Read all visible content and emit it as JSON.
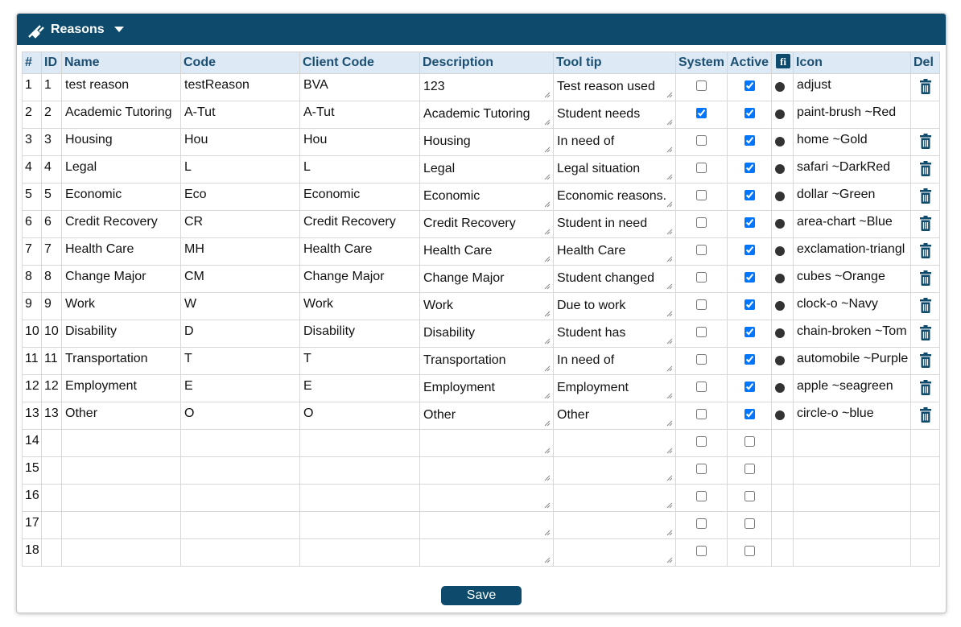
{
  "header": {
    "title": "Reasons"
  },
  "table": {
    "columns": [
      "#",
      "ID",
      "Name",
      "Code",
      "Client Code",
      "Description",
      "Tool tip",
      "System",
      "Active",
      "Icon",
      "Del"
    ],
    "rows": [
      {
        "num": 1,
        "id": 1,
        "name": "test reason",
        "code": "testReason",
        "client_code": "BVA",
        "description": "123",
        "tooltip": "Test reason used",
        "system": false,
        "active": true,
        "icon": "adjust"
      },
      {
        "num": 2,
        "id": 2,
        "name": "Academic Tutoring",
        "code": "A-Tut",
        "client_code": "A-Tut",
        "description": "Academic Tutoring",
        "tooltip": "Student needs",
        "system": true,
        "active": true,
        "icon": "paint-brush ~Red"
      },
      {
        "num": 3,
        "id": 3,
        "name": "Housing",
        "code": "Hou",
        "client_code": "Hou",
        "description": "Housing",
        "tooltip": "In need of",
        "system": false,
        "active": true,
        "icon": "home ~Gold"
      },
      {
        "num": 4,
        "id": 4,
        "name": "Legal",
        "code": "L",
        "client_code": "L",
        "description": "Legal",
        "tooltip": "Legal situation",
        "system": false,
        "active": true,
        "icon": "safari ~DarkRed"
      },
      {
        "num": 5,
        "id": 5,
        "name": "Economic",
        "code": "Eco",
        "client_code": "Economic",
        "description": "Economic",
        "tooltip": "Economic reasons.",
        "system": false,
        "active": true,
        "icon": "dollar ~Green"
      },
      {
        "num": 6,
        "id": 6,
        "name": "Credit Recovery",
        "code": "CR",
        "client_code": "Credit Recovery",
        "description": "Credit Recovery",
        "tooltip": "Student in need",
        "system": false,
        "active": true,
        "icon": "area-chart ~Blue"
      },
      {
        "num": 7,
        "id": 7,
        "name": "Health Care",
        "code": "MH",
        "client_code": "Health Care",
        "description": "Health Care",
        "tooltip": "Health Care",
        "system": false,
        "active": true,
        "icon": "exclamation-triangl"
      },
      {
        "num": 8,
        "id": 8,
        "name": "Change Major",
        "code": "CM",
        "client_code": "Change Major",
        "description": "Change Major",
        "tooltip": "Student changed",
        "system": false,
        "active": true,
        "icon": "cubes ~Orange"
      },
      {
        "num": 9,
        "id": 9,
        "name": "Work",
        "code": "W",
        "client_code": "Work",
        "description": "Work",
        "tooltip": "Due to work",
        "system": false,
        "active": true,
        "icon": "clock-o ~Navy"
      },
      {
        "num": 10,
        "id": 10,
        "name": "Disability",
        "code": "D",
        "client_code": "Disability",
        "description": "Disability",
        "tooltip": "Student has",
        "system": false,
        "active": true,
        "icon": "chain-broken ~Tom"
      },
      {
        "num": 11,
        "id": 11,
        "name": "Transportation",
        "code": "T",
        "client_code": "T",
        "description": "Transportation",
        "tooltip": "In need of",
        "system": false,
        "active": true,
        "icon": "automobile ~Purple"
      },
      {
        "num": 12,
        "id": 12,
        "name": "Employment",
        "code": "E",
        "client_code": "E",
        "description": "Employment",
        "tooltip": "Employment",
        "system": false,
        "active": true,
        "icon": "apple ~seagreen"
      },
      {
        "num": 13,
        "id": 13,
        "name": "Other",
        "code": "O",
        "client_code": "O",
        "description": "Other",
        "tooltip": "Other",
        "system": false,
        "active": true,
        "icon": "circle-o ~blue"
      },
      {
        "num": 14,
        "system": false,
        "active": false
      },
      {
        "num": 15,
        "system": false,
        "active": false
      },
      {
        "num": 16,
        "system": false,
        "active": false
      },
      {
        "num": 17,
        "system": false,
        "active": false
      },
      {
        "num": 18,
        "system": false,
        "active": false
      }
    ]
  },
  "save_button": "Save"
}
